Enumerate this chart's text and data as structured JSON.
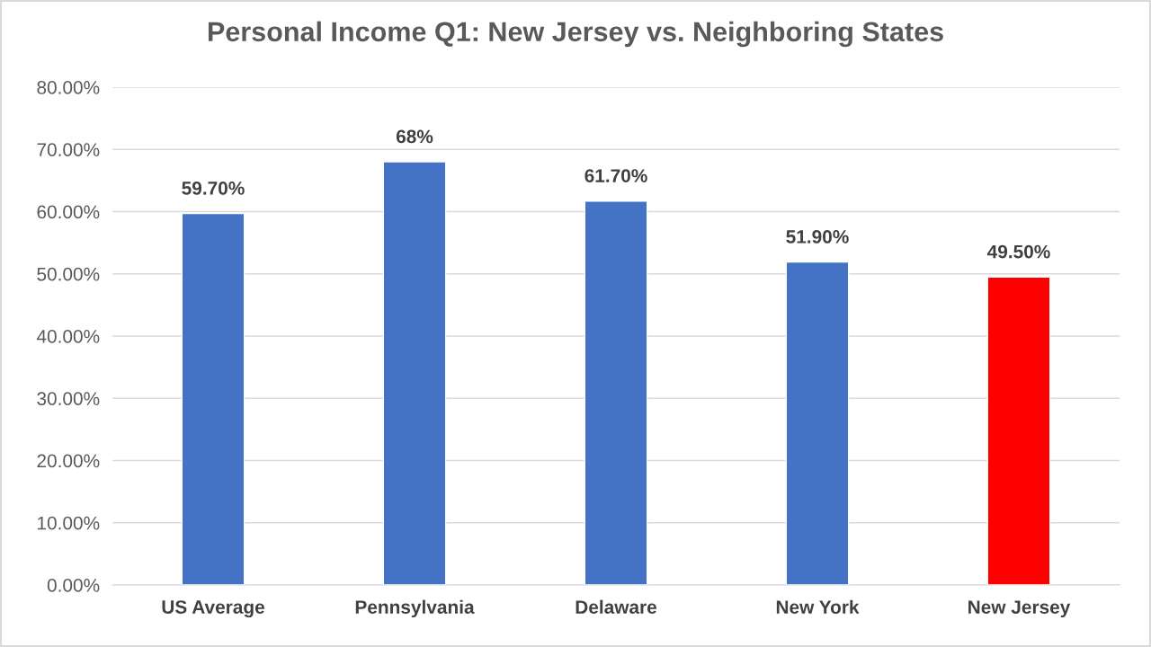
{
  "chart_data": {
    "type": "bar",
    "title": "Personal Income Q1: New Jersey vs. Neighboring States",
    "categories": [
      "US Average",
      "Pennsylvania",
      "Delaware",
      "New York",
      "New Jersey"
    ],
    "values": [
      59.7,
      68,
      61.7,
      51.9,
      49.5
    ],
    "colors": [
      "#4472c4",
      "#4472c4",
      "#4472c4",
      "#4472c4",
      "#ff0000"
    ],
    "value_labels": [
      "59.70%",
      "68%",
      "61.70%",
      "51.90%",
      "49.50%"
    ],
    "ylim": [
      0,
      80
    ],
    "yticks": [
      {
        "value": 0,
        "label": "0.00%"
      },
      {
        "value": 10,
        "label": "10.00%"
      },
      {
        "value": 20,
        "label": "20.00%"
      },
      {
        "value": 30,
        "label": "30.00%"
      },
      {
        "value": 40,
        "label": "40.00%"
      },
      {
        "value": 50,
        "label": "50.00%"
      },
      {
        "value": 60,
        "label": "60.00%"
      },
      {
        "value": 70,
        "label": "70.00%"
      },
      {
        "value": 80,
        "label": "80.00%"
      }
    ],
    "grid": "y",
    "legend": false
  }
}
